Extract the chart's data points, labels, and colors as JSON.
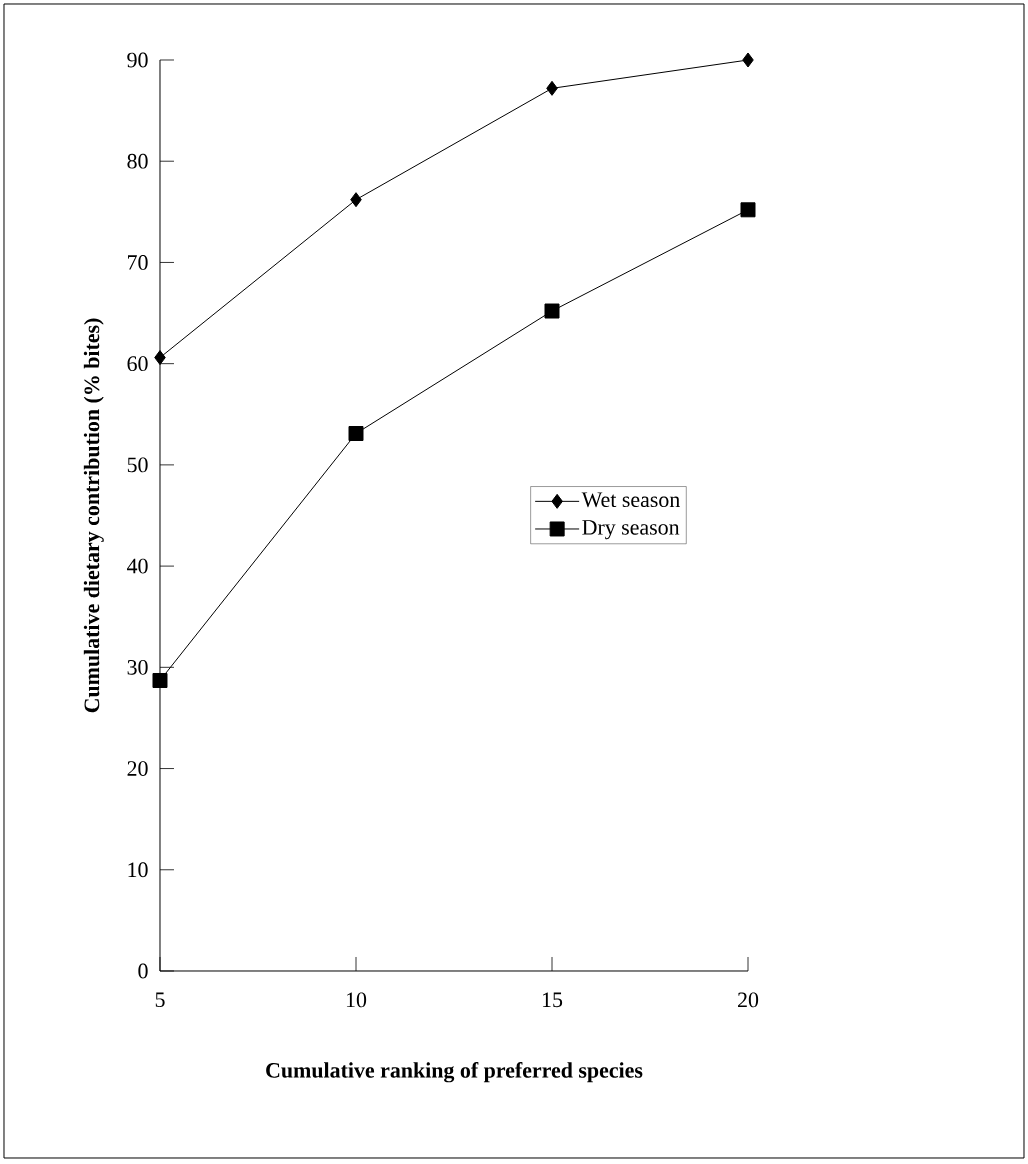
{
  "chart_data": {
    "type": "line",
    "xlabel": "**Cumulative ranking of preferred species**",
    "ylabel": "**Cumulative dietary contribution (% bites)**",
    "x": [
      5,
      10,
      15,
      20
    ],
    "series": [
      {
        "name": "Wet season",
        "color": "#000000",
        "marker": "diamond",
        "values": [
          60.6,
          76.2,
          87.2,
          90
        ]
      },
      {
        "name": "Dry season",
        "color": "#000000",
        "marker": "square",
        "values": [
          28.7,
          53.1,
          65.2,
          75.2
        ]
      }
    ],
    "xlim": [
      5,
      20
    ],
    "xticks": [
      5,
      10,
      15,
      20
    ],
    "ylim": [
      0,
      90
    ],
    "yticks": [
      0,
      10,
      20,
      30,
      40,
      50,
      60,
      70,
      80,
      90
    ],
    "legend": "right",
    "grid": false,
    "line_style": "solid"
  }
}
